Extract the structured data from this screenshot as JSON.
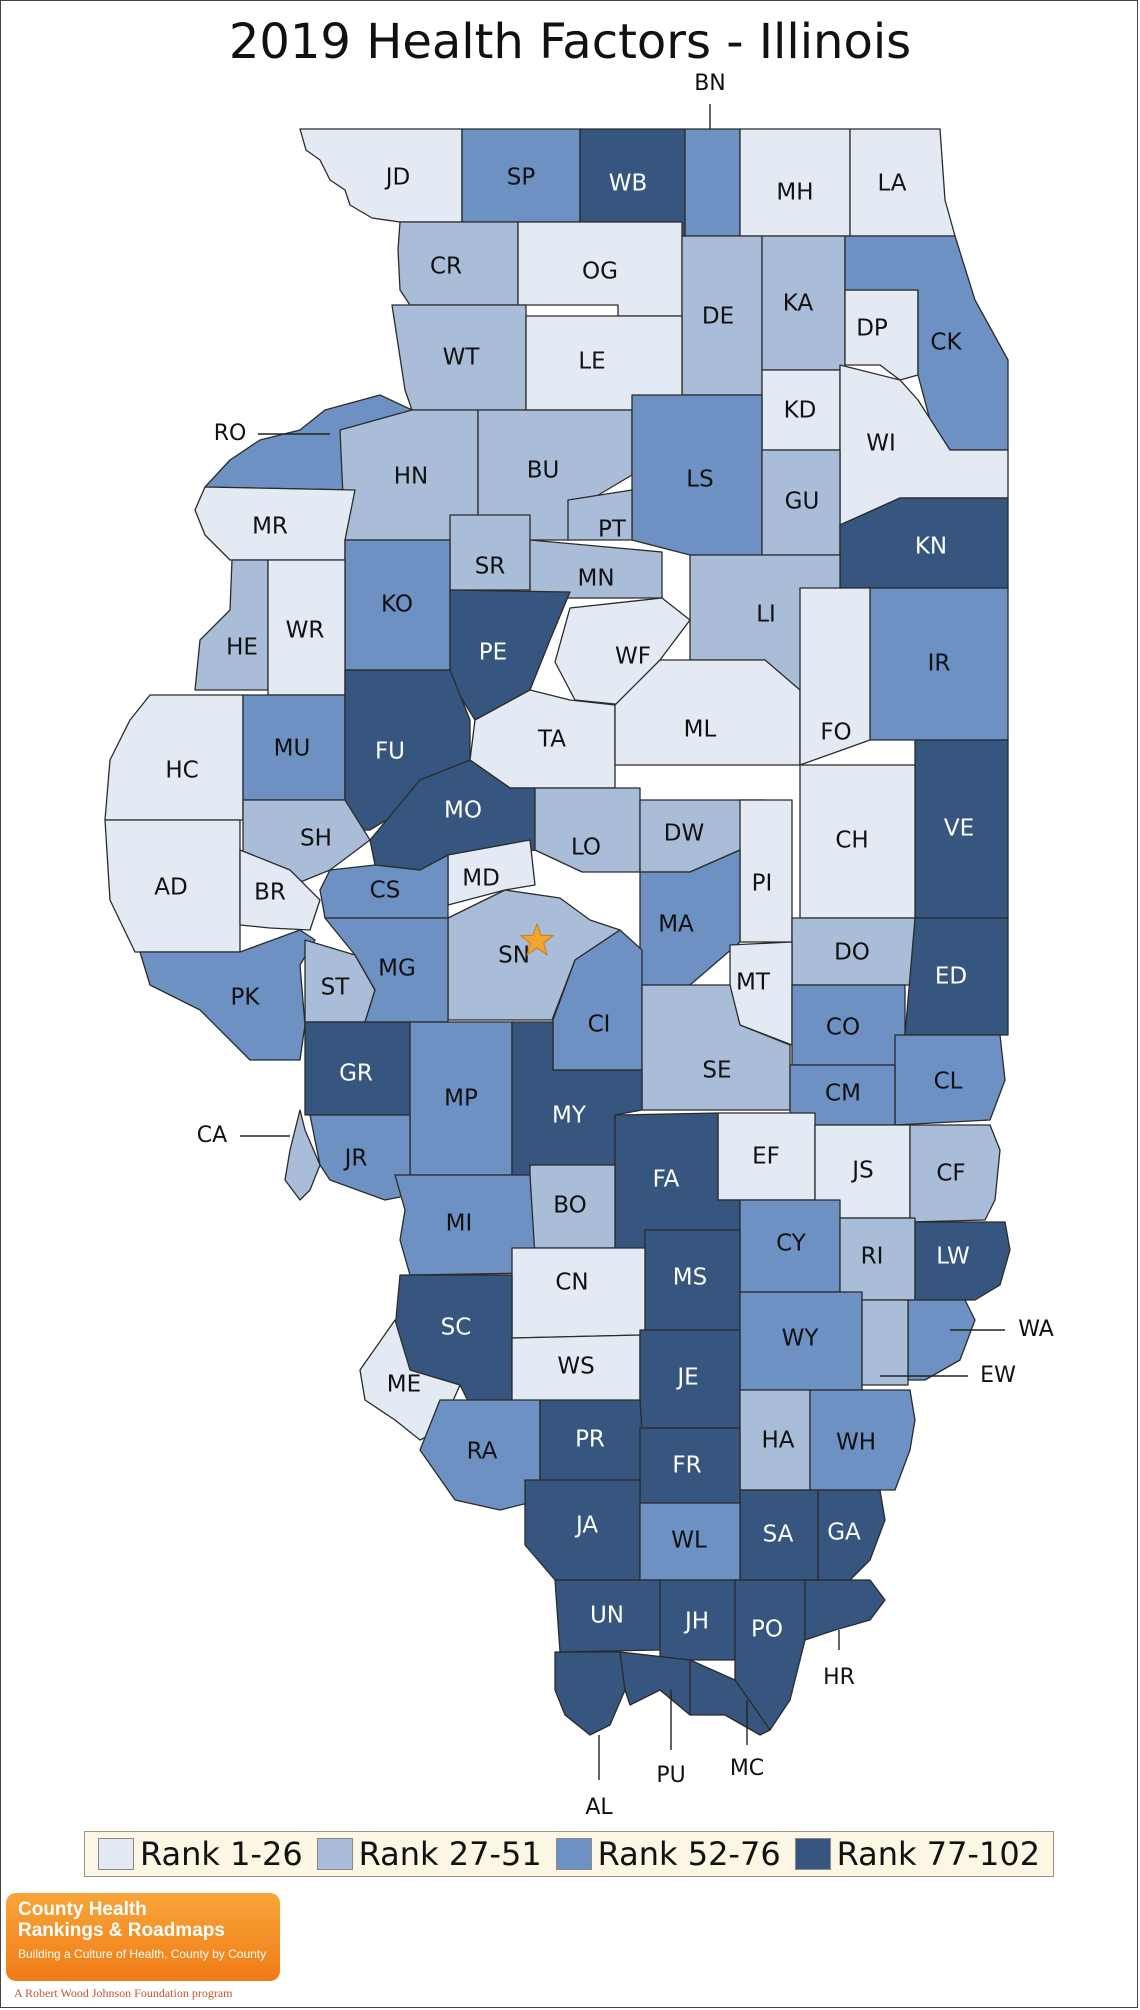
{
  "title": "2019 Health Factors - Illinois",
  "colors": {
    "rank_1_26": "#e3eaf3",
    "rank_27_51": "#a9bcd8",
    "rank_52_76": "#6c91c2",
    "rank_77_102": "#36557f",
    "border": "#2b2b2b",
    "star": "#f2a531"
  },
  "legend": [
    {
      "label": "Rank 1-26",
      "color": "#e3eaf3"
    },
    {
      "label": "Rank 27-51",
      "color": "#a9bcd8"
    },
    {
      "label": "Rank 52-76",
      "color": "#6c91c2"
    },
    {
      "label": "Rank 77-102",
      "color": "#36557f"
    }
  ],
  "capital_marker": "star-icon",
  "logo": {
    "line1": "County Health",
    "line2": "Rankings & Roadmaps",
    "tagline": "Building a Culture of Health, County by County"
  },
  "sponsor": "A Robert Wood Johnson Foundation program",
  "counties": [
    {
      "code": "JD",
      "rank_group": 1
    },
    {
      "code": "SP",
      "rank_group": 3
    },
    {
      "code": "WB",
      "rank_group": 4
    },
    {
      "code": "BN",
      "rank_group": 3
    },
    {
      "code": "MH",
      "rank_group": 1
    },
    {
      "code": "LA",
      "rank_group": 1
    },
    {
      "code": "CR",
      "rank_group": 2
    },
    {
      "code": "OG",
      "rank_group": 1
    },
    {
      "code": "DE",
      "rank_group": 2
    },
    {
      "code": "KA",
      "rank_group": 2
    },
    {
      "code": "DP",
      "rank_group": 1
    },
    {
      "code": "CK",
      "rank_group": 3
    },
    {
      "code": "WT",
      "rank_group": 2
    },
    {
      "code": "LE",
      "rank_group": 1
    },
    {
      "code": "RO",
      "rank_group": 3
    },
    {
      "code": "KD",
      "rank_group": 1
    },
    {
      "code": "WI",
      "rank_group": 1
    },
    {
      "code": "HN",
      "rank_group": 2
    },
    {
      "code": "BU",
      "rank_group": 2
    },
    {
      "code": "LS",
      "rank_group": 3
    },
    {
      "code": "MR",
      "rank_group": 1
    },
    {
      "code": "PT",
      "rank_group": 2
    },
    {
      "code": "GU",
      "rank_group": 2
    },
    {
      "code": "KN",
      "rank_group": 4
    },
    {
      "code": "SR",
      "rank_group": 2
    },
    {
      "code": "MN",
      "rank_group": 2
    },
    {
      "code": "LI",
      "rank_group": 2
    },
    {
      "code": "KO",
      "rank_group": 3
    },
    {
      "code": "HE",
      "rank_group": 2
    },
    {
      "code": "WR",
      "rank_group": 1
    },
    {
      "code": "PE",
      "rank_group": 4
    },
    {
      "code": "WF",
      "rank_group": 1
    },
    {
      "code": "IR",
      "rank_group": 3
    },
    {
      "code": "HC",
      "rank_group": 1
    },
    {
      "code": "MU",
      "rank_group": 3
    },
    {
      "code": "FU",
      "rank_group": 4
    },
    {
      "code": "TA",
      "rank_group": 1
    },
    {
      "code": "ML",
      "rank_group": 1
    },
    {
      "code": "FO",
      "rank_group": 1
    },
    {
      "code": "MO",
      "rank_group": 4
    },
    {
      "code": "VE",
      "rank_group": 4
    },
    {
      "code": "SH",
      "rank_group": 2
    },
    {
      "code": "LO",
      "rank_group": 2
    },
    {
      "code": "DW",
      "rank_group": 2
    },
    {
      "code": "CH",
      "rank_group": 1
    },
    {
      "code": "AD",
      "rank_group": 1
    },
    {
      "code": "BR",
      "rank_group": 1
    },
    {
      "code": "MD",
      "rank_group": 1
    },
    {
      "code": "PI",
      "rank_group": 1
    },
    {
      "code": "CS",
      "rank_group": 3
    },
    {
      "code": "MA",
      "rank_group": 3
    },
    {
      "code": "SN",
      "rank_group": 2
    },
    {
      "code": "DO",
      "rank_group": 2
    },
    {
      "code": "ED",
      "rank_group": 4
    },
    {
      "code": "PK",
      "rank_group": 3
    },
    {
      "code": "ST",
      "rank_group": 2
    },
    {
      "code": "MG",
      "rank_group": 3
    },
    {
      "code": "MT",
      "rank_group": 1
    },
    {
      "code": "CI",
      "rank_group": 3
    },
    {
      "code": "CO",
      "rank_group": 3
    },
    {
      "code": "GR",
      "rank_group": 4
    },
    {
      "code": "SE",
      "rank_group": 2
    },
    {
      "code": "CL",
      "rank_group": 3
    },
    {
      "code": "MP",
      "rank_group": 3
    },
    {
      "code": "CM",
      "rank_group": 3
    },
    {
      "code": "MY",
      "rank_group": 4
    },
    {
      "code": "CA",
      "rank_group": 2
    },
    {
      "code": "EF",
      "rank_group": 1
    },
    {
      "code": "JS",
      "rank_group": 1
    },
    {
      "code": "JR",
      "rank_group": 3
    },
    {
      "code": "FA",
      "rank_group": 4
    },
    {
      "code": "CF",
      "rank_group": 2
    },
    {
      "code": "BO",
      "rank_group": 2
    },
    {
      "code": "MI",
      "rank_group": 3
    },
    {
      "code": "CY",
      "rank_group": 3
    },
    {
      "code": "RI",
      "rank_group": 2
    },
    {
      "code": "LW",
      "rank_group": 4
    },
    {
      "code": "MS",
      "rank_group": 4
    },
    {
      "code": "CN",
      "rank_group": 1
    },
    {
      "code": "SC",
      "rank_group": 4
    },
    {
      "code": "WA",
      "rank_group": 3
    },
    {
      "code": "WY",
      "rank_group": 3
    },
    {
      "code": "WS",
      "rank_group": 1
    },
    {
      "code": "EW",
      "rank_group": 2
    },
    {
      "code": "ME",
      "rank_group": 1
    },
    {
      "code": "JE",
      "rank_group": 4
    },
    {
      "code": "RA",
      "rank_group": 3
    },
    {
      "code": "HA",
      "rank_group": 2
    },
    {
      "code": "WH",
      "rank_group": 3
    },
    {
      "code": "PR",
      "rank_group": 4
    },
    {
      "code": "FR",
      "rank_group": 4
    },
    {
      "code": "JA",
      "rank_group": 4
    },
    {
      "code": "SA",
      "rank_group": 4
    },
    {
      "code": "GA",
      "rank_group": 4
    },
    {
      "code": "WL",
      "rank_group": 3
    },
    {
      "code": "UN",
      "rank_group": 4
    },
    {
      "code": "JH",
      "rank_group": 4
    },
    {
      "code": "PO",
      "rank_group": 4
    },
    {
      "code": "HR",
      "rank_group": 4
    },
    {
      "code": "AL",
      "rank_group": 4
    },
    {
      "code": "PU",
      "rank_group": 4
    },
    {
      "code": "MC",
      "rank_group": 4
    }
  ]
}
